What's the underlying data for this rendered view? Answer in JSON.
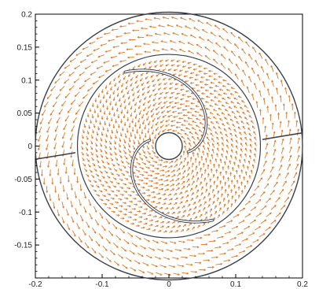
{
  "chart_data": {
    "type": "vector-field",
    "title": "",
    "xlabel": "",
    "ylabel": "",
    "xlim": [
      -0.2,
      0.2
    ],
    "ylim": [
      -0.2,
      0.2
    ],
    "grid": false,
    "x_ticks": [
      {
        "value": -0.2,
        "label": "-0.2"
      },
      {
        "value": -0.1,
        "label": "-0.1"
      },
      {
        "value": 0,
        "label": "0"
      },
      {
        "value": 0.1,
        "label": "0.1"
      },
      {
        "value": 0.2,
        "label": "0.2"
      }
    ],
    "y_ticks": [
      {
        "value": 0.2,
        "label": "0.2"
      },
      {
        "value": 0.15,
        "label": "0.15"
      },
      {
        "value": 0.1,
        "label": "0.1"
      },
      {
        "value": 0.05,
        "label": "0.05"
      },
      {
        "value": 0,
        "label": "0"
      },
      {
        "value": -0.05,
        "label": "-0.05"
      },
      {
        "value": -0.1,
        "label": "-0.1"
      },
      {
        "value": -0.15,
        "label": "-0.15"
      }
    ],
    "boundaries": {
      "outer_circle_radius": 0.2,
      "middle_circle_radius": 0.137,
      "hub_radius": 0.02,
      "outer_blades": [
        {
          "from": [
            -0.14,
            -0.01
          ],
          "to": [
            -0.2,
            -0.02
          ]
        },
        {
          "from": [
            0.14,
            0.01
          ],
          "to": [
            0.2,
            0.02
          ]
        }
      ]
    },
    "vector_color": "#e07a2a",
    "boundary_color": "#3a3f4a"
  }
}
